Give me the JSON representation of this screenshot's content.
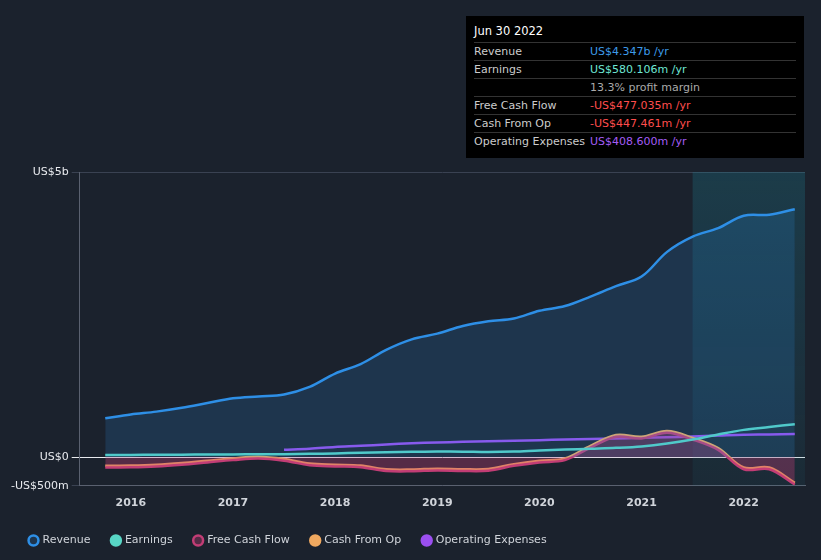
{
  "chart_data": {
    "type": "line",
    "x": [
      2015.75,
      2016,
      2016.25,
      2016.5,
      2016.75,
      2017,
      2017.25,
      2017.5,
      2017.75,
      2018,
      2018.25,
      2018.5,
      2018.75,
      2019,
      2019.25,
      2019.5,
      2019.75,
      2020,
      2020.25,
      2020.5,
      2020.75,
      2021,
      2021.25,
      2021.5,
      2021.75,
      2022,
      2022.25,
      2022.5
    ],
    "series": [
      {
        "name": "Revenue",
        "color": "#2e8fe6",
        "values": [
          683,
          750,
          800,
          867,
          950,
          1033,
          1067,
          1100,
          1233,
          1467,
          1633,
          1883,
          2067,
          2167,
          2300,
          2383,
          2433,
          2567,
          2650,
          2817,
          3000,
          3167,
          3600,
          3867,
          4017,
          4233,
          4250,
          4347
        ]
      },
      {
        "name": "Earnings",
        "color": "#58d6c5",
        "values": [
          40,
          42,
          44,
          46,
          48,
          50,
          52,
          55,
          60,
          68,
          78,
          88,
          95,
          100,
          98,
          92,
          100,
          120,
          135,
          150,
          165,
          190,
          240,
          310,
          400,
          480,
          530,
          580.106
        ]
      },
      {
        "name": "Free Cash Flow",
        "color": "#c23d75",
        "values": [
          -180,
          -175,
          -160,
          -130,
          -90,
          -50,
          -20,
          -60,
          -140,
          -160,
          -175,
          -240,
          -245,
          -230,
          -240,
          -235,
          -150,
          -90,
          -50,
          170,
          360,
          330,
          430,
          310,
          130,
          -210,
          -210,
          -477.035
        ]
      },
      {
        "name": "Cash From Op",
        "color": "#f0a960",
        "values": [
          -150,
          -145,
          -130,
          -100,
          -60,
          -20,
          10,
          -30,
          -110,
          -130,
          -145,
          -210,
          -215,
          -200,
          -210,
          -205,
          -120,
          -60,
          -20,
          200,
          390,
          360,
          460,
          340,
          160,
          -180,
          -180,
          -447.461
        ]
      },
      {
        "name": "Operating Expenses",
        "color": "#9b4ff0",
        "values": [
          null,
          null,
          null,
          null,
          null,
          null,
          null,
          133,
          150,
          180,
          200,
          225,
          245,
          260,
          270,
          280,
          290,
          300,
          310,
          320,
          330,
          340,
          350,
          365,
          380,
          395,
          400,
          408.6
        ]
      }
    ],
    "xlim": [
      2015.5,
      2022.6
    ],
    "xticks": [
      2016,
      2017,
      2018,
      2019,
      2020,
      2021,
      2022
    ],
    "ylim": [
      -500,
      5000
    ],
    "yticks": [
      {
        "value": -500,
        "label": "-US$500m"
      },
      {
        "value": 0,
        "label": "US$0"
      },
      {
        "value": 5000,
        "label": "US$5b"
      }
    ],
    "grid": true,
    "legend": "bottom",
    "shaded_x": [
      2021.5,
      2022.6
    ],
    "tooltip": {
      "title": "Jun 30 2022",
      "rows": [
        {
          "label": "Revenue",
          "text": "US$4.347b /yr",
          "color": "#3d9be9"
        },
        {
          "label": "Earnings",
          "text": "US$580.106m /yr",
          "color": "#6ee6d4"
        },
        {
          "text": "13.3% profit margin",
          "color": "#aaaaaa"
        },
        {
          "label": "Free Cash Flow",
          "text": "-US$477.035m /yr",
          "color": "#ff4d4d"
        },
        {
          "label": "Cash From Op",
          "text": "-US$447.461m /yr",
          "color": "#ff4d4d"
        },
        {
          "label": "Operating Expenses",
          "text": "US$408.600m /yr",
          "color": "#a45cf5"
        }
      ]
    }
  }
}
